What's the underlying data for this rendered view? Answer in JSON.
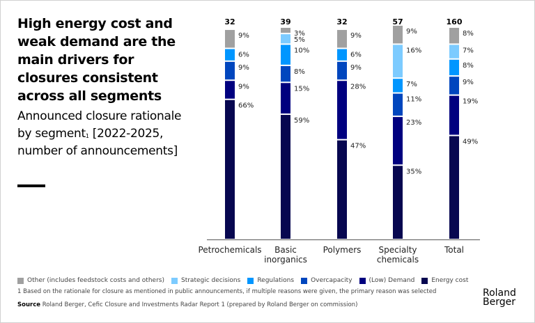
{
  "title": "High energy cost and weak demand are the main drivers for closures consistent across all segments",
  "subtitle": "Announced closure rationale by segment",
  "subtitle_sup": "1",
  "subtitle_line2": "[2022-2025, number of announcements]",
  "footnote": "1  Based on the rationale for closure as mentioned in public announcements, if multiple reasons were given, the primary reason was selected",
  "source_label": "Source",
  "source_text": "Roland Berger, Cefic Closure and Investments Radar Report 1 (prepared by Roland Berger on commission)",
  "logo": {
    "line1": "Roland",
    "line2": "Berger"
  },
  "chart_data": {
    "type": "bar",
    "stacked": true,
    "normalized": true,
    "title": "Announced closure rationale by segment",
    "xlabel": "",
    "ylabel": "",
    "ylim": [
      0,
      100
    ],
    "categories": [
      "Petrochemicals",
      "Basic inorganics",
      "Polymers",
      "Specialty chemicals",
      "Total"
    ],
    "category_lines": [
      [
        "Petrochemicals"
      ],
      [
        "Basic",
        "inorganics"
      ],
      [
        "Polymers"
      ],
      [
        "Specialty",
        "chemicals"
      ],
      [
        "Total"
      ]
    ],
    "totals": [
      32,
      39,
      32,
      57,
      160
    ],
    "value_suffix": "%",
    "series": [
      {
        "name": "Energy cost",
        "color": "#070750",
        "values": [
          66,
          59,
          47,
          35,
          49
        ]
      },
      {
        "name": "(Low) Demand",
        "color": "#00007f",
        "values": [
          9,
          15,
          28,
          23,
          19
        ]
      },
      {
        "name": "Overcapacity",
        "color": "#0046be",
        "values": [
          9,
          8,
          9,
          11,
          9
        ]
      },
      {
        "name": "Regulations",
        "color": "#0096ff",
        "values": [
          6,
          10,
          6,
          7,
          8
        ]
      },
      {
        "name": "Strategic decisions",
        "color": "#7ccbff",
        "values": [
          0,
          5,
          0,
          16,
          7
        ]
      },
      {
        "name": "Other (includes feedstock costs and others)",
        "color": "#a0a0a0",
        "values": [
          9,
          3,
          9,
          9,
          8
        ]
      }
    ],
    "legend": {
      "position": "bottom",
      "order": [
        "Other (includes feedstock costs and others)",
        "Strategic decisions",
        "Regulations",
        "Overcapacity",
        "(Low) Demand",
        "Energy cost"
      ]
    },
    "grid": false
  }
}
